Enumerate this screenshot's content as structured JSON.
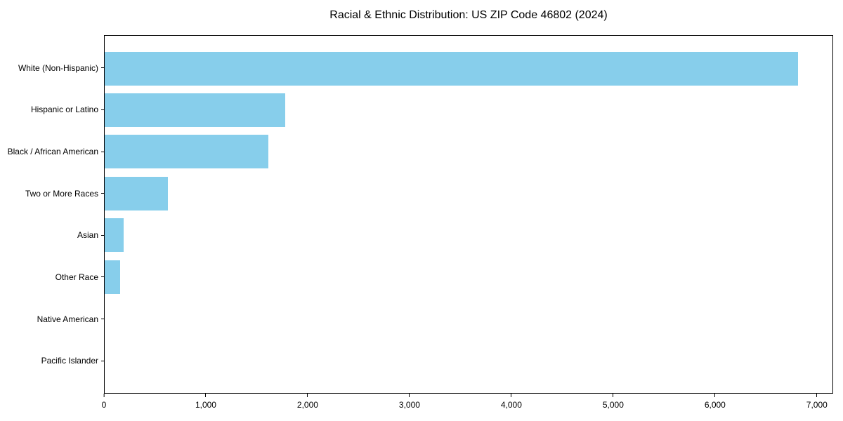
{
  "figure": {
    "background": "#ffffff",
    "axis_color": "#000000",
    "text_color": "#000000"
  },
  "chart_data": {
    "type": "bar",
    "orientation": "horizontal",
    "title": "Racial & Ethnic Distribution: US ZIP Code 46802 (2024)",
    "xlabel": "",
    "ylabel": "",
    "categories": [
      "White (Non-Hispanic)",
      "Hispanic or Latino",
      "Black / African American",
      "Two or More Races",
      "Asian",
      "Other Race",
      "Native American",
      "Pacific Islander"
    ],
    "values": [
      6820,
      1775,
      1610,
      620,
      185,
      150,
      0,
      0
    ],
    "bar_color": "#87CEEB",
    "xlim": [
      0,
      7160
    ],
    "xticks": [
      0,
      1000,
      2000,
      3000,
      4000,
      5000,
      6000,
      7000
    ],
    "xtick_labels": [
      "0",
      "1,000",
      "2,000",
      "3,000",
      "4,000",
      "5,000",
      "6,000",
      "7,000"
    ],
    "grid": false,
    "legend": null
  }
}
